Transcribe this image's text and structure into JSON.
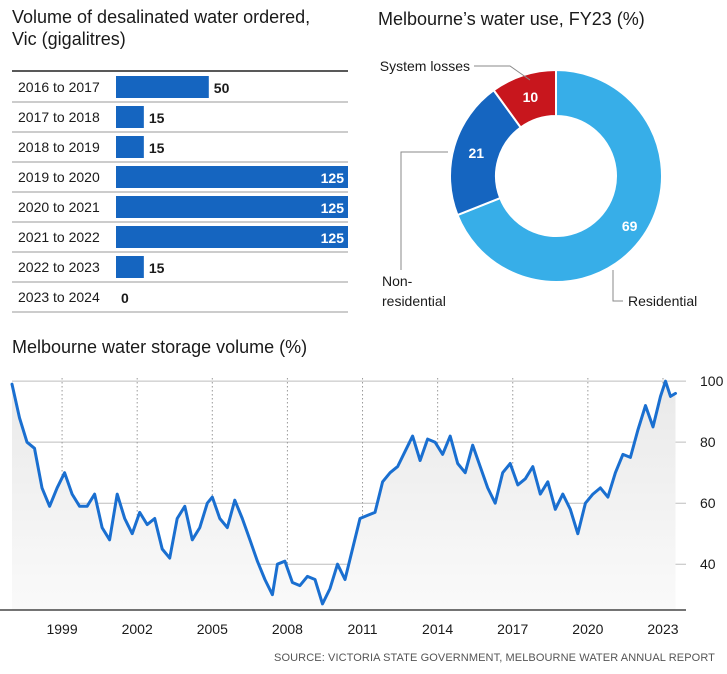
{
  "source": "SOURCE: VICTORIA STATE GOVERNMENT, MELBOURNE WATER ANNUAL REPORT",
  "colors": {
    "bar": "#1565c0",
    "residential": "#37aee8",
    "non_residential": "#1565c0",
    "system_losses": "#c8161d",
    "line": "#1a6fd0"
  },
  "chart_data": [
    {
      "type": "bar",
      "orientation": "horizontal",
      "title": "Volume of desalinated water ordered, Vic (gigalitres)",
      "categories": [
        "2016 to 2017",
        "2017 to 2018",
        "2018 to 2019",
        "2019 to 2020",
        "2020 to 2021",
        "2021 to 2022",
        "2022 to 2023",
        "2023 to 2024"
      ],
      "values": [
        50,
        15,
        15,
        125,
        125,
        125,
        15,
        0
      ],
      "xlim": [
        0,
        125
      ]
    },
    {
      "type": "pie",
      "donut": true,
      "title": "Melbourne’s water use, FY23 (%)",
      "slices": [
        {
          "name": "Residential",
          "value": 69
        },
        {
          "name": "Non-residential",
          "value": 21
        },
        {
          "name": "System losses",
          "value": 10
        }
      ]
    },
    {
      "type": "line",
      "title": "Melbourne water storage volume (%)",
      "x_ticks": [
        "1999",
        "2002",
        "2005",
        "2008",
        "2011",
        "2014",
        "2017",
        "2020",
        "2023"
      ],
      "y_ticks": [
        "40",
        "60",
        "80",
        "100"
      ],
      "xlim": [
        1997,
        2023.6
      ],
      "ylim": [
        25,
        103
      ],
      "series": [
        {
          "x": [
            1997.0,
            1997.3,
            1997.6,
            1997.9,
            1998.2,
            1998.5,
            1998.8,
            1999.1,
            1999.4,
            1999.7,
            2000.0,
            2000.3,
            2000.6,
            2000.9,
            2001.2,
            2001.5,
            2001.8,
            2002.1,
            2002.4,
            2002.7,
            2003.0,
            2003.3,
            2003.6,
            2003.9,
            2004.2,
            2004.5,
            2004.8,
            2005.0,
            2005.3,
            2005.6,
            2005.9,
            2006.2,
            2006.5,
            2006.8,
            2007.1,
            2007.4,
            2007.6,
            2007.9,
            2008.2,
            2008.5,
            2008.8,
            2009.1,
            2009.4,
            2009.7,
            2010.0,
            2010.3,
            2010.6,
            2010.9,
            2011.2,
            2011.5,
            2011.8,
            2012.1,
            2012.4,
            2012.7,
            2013.0,
            2013.3,
            2013.6,
            2013.9,
            2014.2,
            2014.5,
            2014.8,
            2015.1,
            2015.4,
            2015.7,
            2016.0,
            2016.3,
            2016.6,
            2016.9,
            2017.2,
            2017.5,
            2017.8,
            2018.1,
            2018.4,
            2018.7,
            2019.0,
            2019.3,
            2019.6,
            2019.9,
            2020.2,
            2020.5,
            2020.8,
            2021.1,
            2021.4,
            2021.7,
            2022.0,
            2022.3,
            2022.6,
            2022.9,
            2023.1,
            2023.3,
            2023.5
          ],
          "y": [
            99,
            88,
            80,
            78,
            65,
            59,
            65,
            70,
            63,
            59,
            59,
            63,
            52,
            48,
            63,
            55,
            50,
            57,
            53,
            55,
            45,
            42,
            55,
            59,
            48,
            52,
            60,
            62,
            55,
            52,
            61,
            55,
            48,
            41,
            35,
            30,
            40,
            41,
            34,
            33,
            36,
            35,
            27,
            32,
            40,
            35,
            45,
            55,
            56,
            57,
            67,
            70,
            72,
            77,
            82,
            74,
            81,
            80,
            76,
            82,
            73,
            70,
            79,
            72,
            65,
            60,
            70,
            73,
            66,
            68,
            72,
            63,
            67,
            58,
            63,
            58,
            50,
            60,
            63,
            65,
            62,
            70,
            76,
            75,
            84,
            92,
            85,
            95,
            100,
            95,
            96
          ]
        }
      ]
    }
  ]
}
